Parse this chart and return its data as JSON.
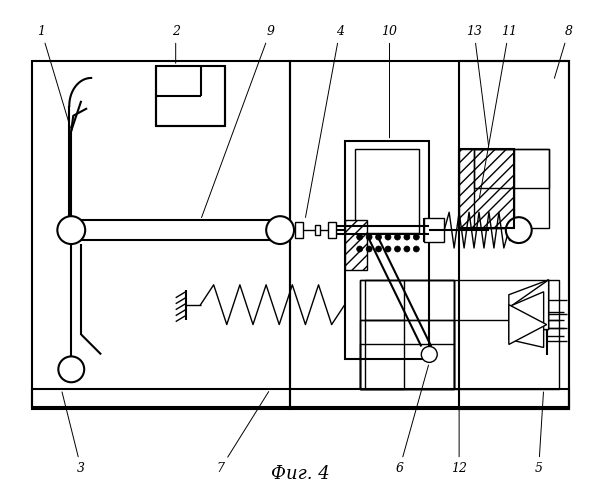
{
  "title": "Фиг. 4",
  "bg_color": "#ffffff",
  "line_color": "#000000"
}
